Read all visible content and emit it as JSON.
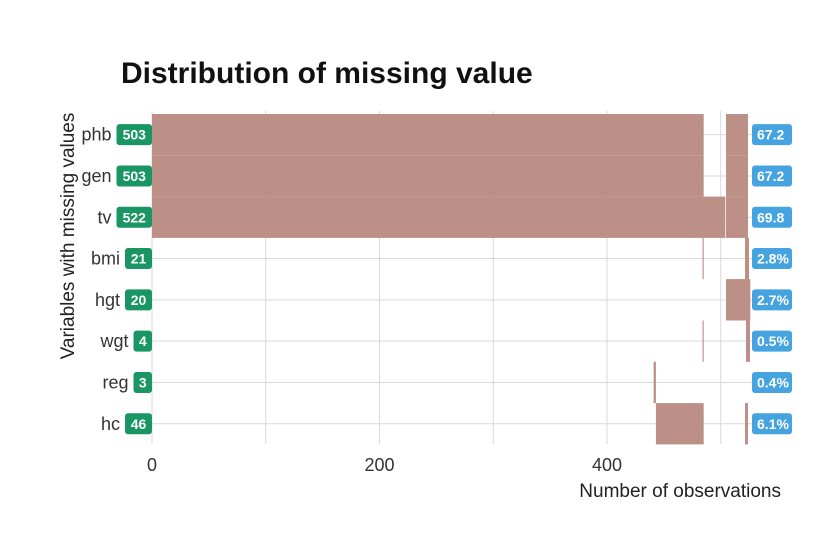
{
  "chart_data": {
    "type": "bar",
    "title": "Distribution of missing value",
    "xlabel": "Number of observations",
    "ylabel": "Variables with missing values",
    "xlim": [
      0,
      553
    ],
    "xticks": [
      0,
      200,
      400
    ],
    "grid": true,
    "categories": [
      "phb",
      "gen",
      "tv",
      "bmi",
      "hgt",
      "wgt",
      "reg",
      "hc"
    ],
    "missing_counts": [
      "503",
      "503",
      "522",
      "21",
      "20",
      "4",
      "3",
      "46"
    ],
    "missing_percent_labels": [
      "67.2",
      "67.2",
      "69.8",
      "2.8%",
      "2.7%",
      "0.5%",
      "0.4%",
      "6.1%"
    ],
    "bar_segments": [
      {
        "start": 0,
        "end": 485
      },
      {
        "start": 0,
        "end": 485
      },
      {
        "start": 0,
        "end": 504
      },
      {
        "start": 484,
        "end": 485
      },
      {
        "start": 506,
        "end": 526
      },
      {
        "start": 484,
        "end": 485
      },
      {
        "start": 441,
        "end": 443
      },
      {
        "start": 443,
        "end": 485
      }
    ],
    "bar_color": "#bc9086",
    "count_badge_color": "#1a9664",
    "percent_badge_color": "#45a3e0"
  }
}
